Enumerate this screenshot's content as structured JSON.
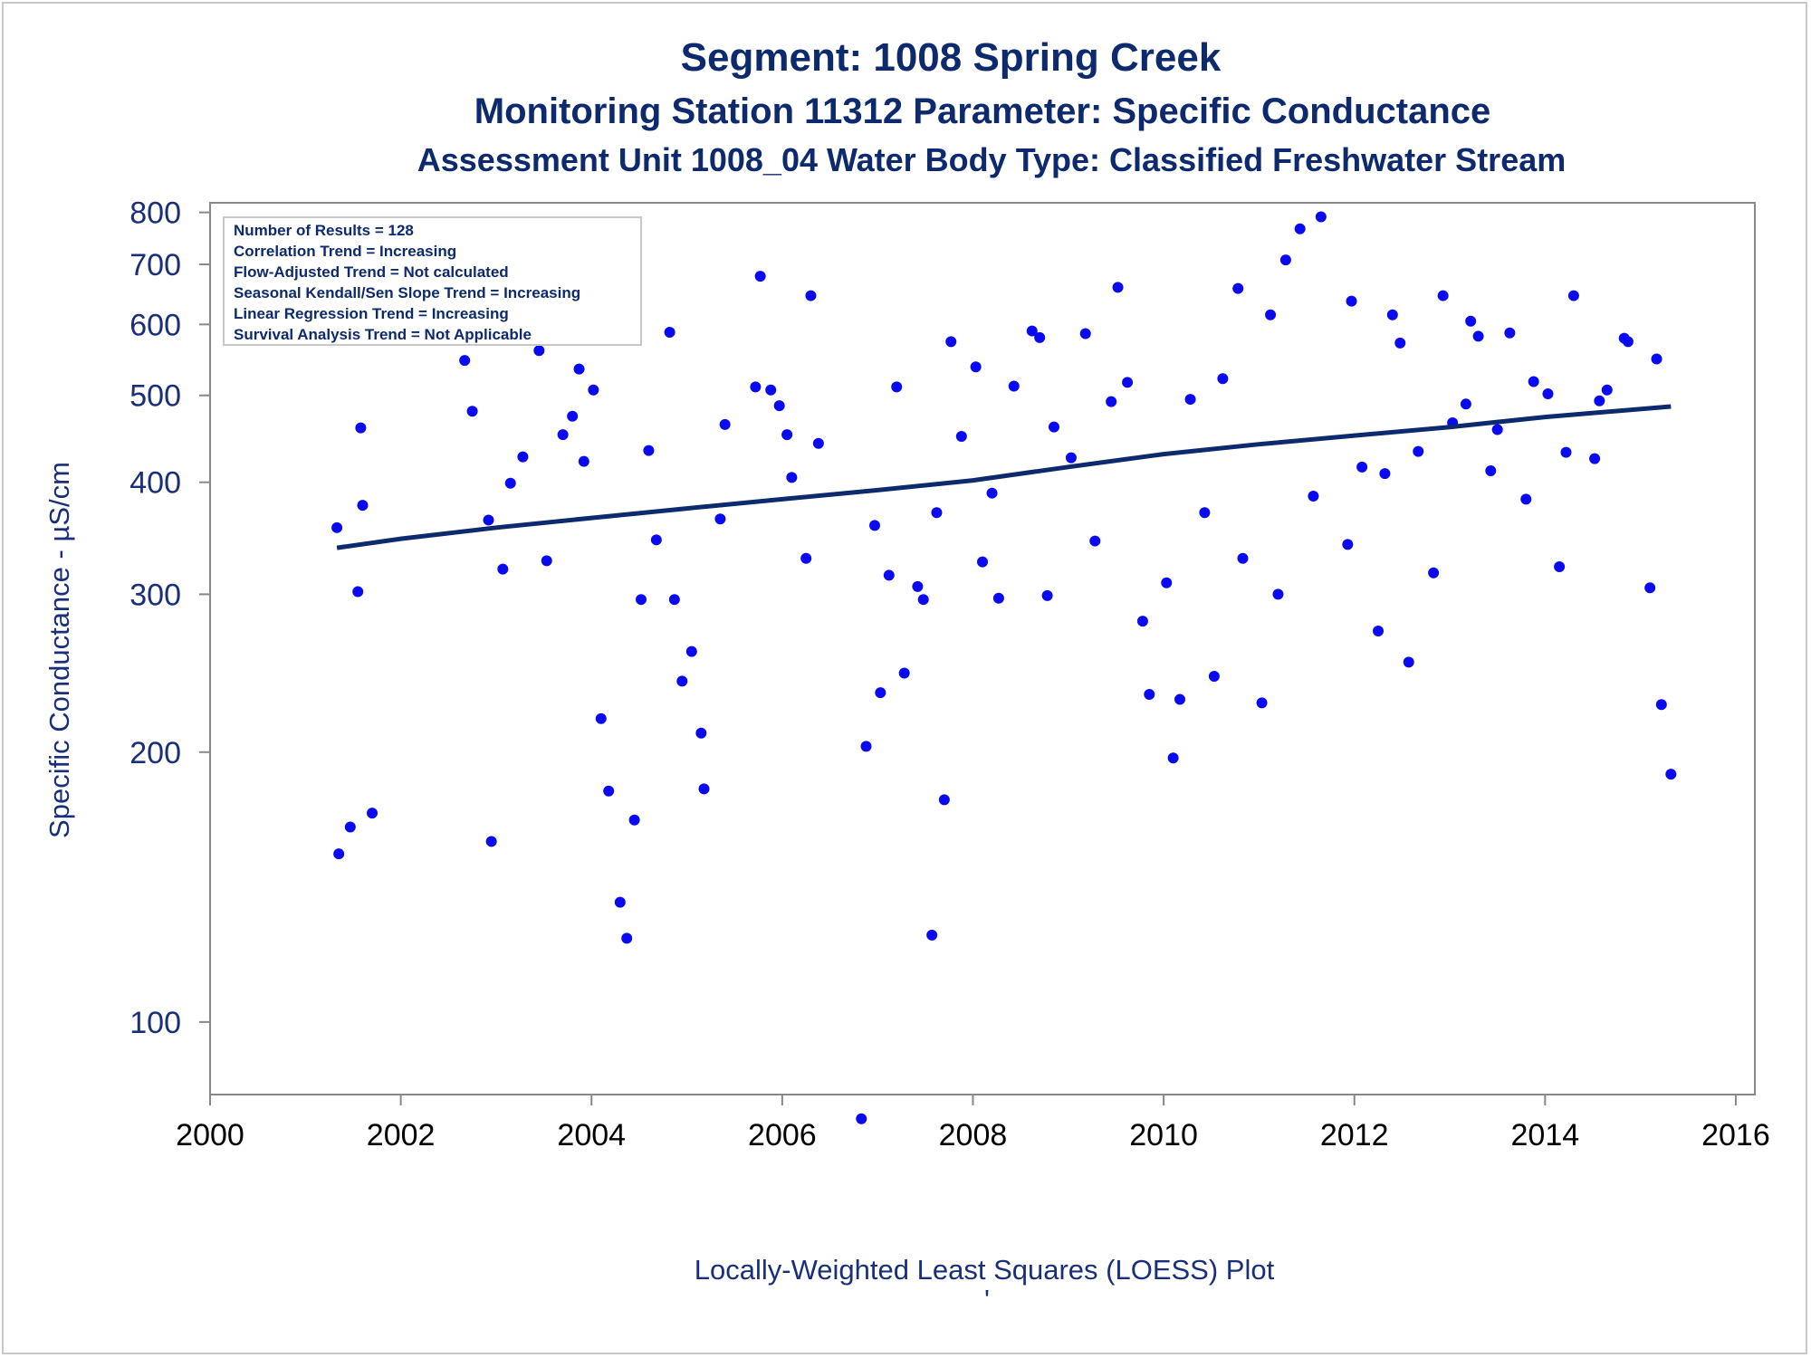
{
  "titles": {
    "line1": "Segment: 1008  Spring Creek",
    "line2": "Monitoring Station 11312 Parameter: Specific Conductance",
    "line3": "Assessment Unit 1008_04   Water Body Type: Classified Freshwater Stream"
  },
  "stats_box": {
    "lines": [
      "Number of Results = 128",
      "Correlation Trend = Increasing",
      "Flow-Adjusted Trend = Not calculated",
      "Seasonal Kendall/Sen Slope Trend = Increasing",
      "Linear Regression Trend = Increasing",
      "Survival Analysis Trend = Not Applicable"
    ]
  },
  "footnote": {
    "text": "Locally-Weighted Least Squares (LOESS) Plot",
    "mark": "'"
  },
  "colors": {
    "points": "#0a0af0",
    "trend_line": "#0d2a6e",
    "axis": "#888888",
    "title": "#0d2a6e"
  },
  "chart_data": {
    "type": "scatter",
    "ylabel": "Specific Conductance -  µS/cm",
    "xlabel": "",
    "y_scale": "log",
    "xlim": [
      2000,
      2016.2
    ],
    "ylim": [
      83,
      820
    ],
    "x_ticks": [
      2000,
      2002,
      2004,
      2006,
      2008,
      2010,
      2012,
      2014,
      2016
    ],
    "y_ticks": [
      100,
      200,
      300,
      400,
      500,
      600,
      700,
      800
    ],
    "grid": false,
    "legend": "top-left inset text box",
    "series": [
      {
        "type": "scatter",
        "points": [
          [
            2001.33,
            356
          ],
          [
            2001.35,
            154
          ],
          [
            2001.47,
            165
          ],
          [
            2001.55,
            302
          ],
          [
            2001.58,
            460
          ],
          [
            2001.6,
            377
          ],
          [
            2001.7,
            171
          ],
          [
            2002.67,
            547
          ],
          [
            2002.75,
            480
          ],
          [
            2002.92,
            363
          ],
          [
            2002.95,
            159
          ],
          [
            2003.07,
            320
          ],
          [
            2003.15,
            399
          ],
          [
            2003.28,
            427
          ],
          [
            2003.4,
            585
          ],
          [
            2003.45,
            561
          ],
          [
            2003.53,
            327
          ],
          [
            2003.62,
            671
          ],
          [
            2003.7,
            452
          ],
          [
            2003.8,
            474
          ],
          [
            2003.87,
            535
          ],
          [
            2003.92,
            422
          ],
          [
            2004.02,
            507
          ],
          [
            2004.1,
            218
          ],
          [
            2004.18,
            181
          ],
          [
            2004.3,
            136
          ],
          [
            2004.37,
            124
          ],
          [
            2004.45,
            168
          ],
          [
            2004.52,
            296
          ],
          [
            2004.6,
            434
          ],
          [
            2004.68,
            345
          ],
          [
            2004.82,
            588
          ],
          [
            2004.87,
            296
          ],
          [
            2004.95,
            240
          ],
          [
            2005.05,
            259
          ],
          [
            2005.15,
            210
          ],
          [
            2005.18,
            182
          ],
          [
            2005.35,
            364
          ],
          [
            2005.4,
            464
          ],
          [
            2005.72,
            511
          ],
          [
            2005.77,
            679
          ],
          [
            2005.88,
            507
          ],
          [
            2005.97,
            487
          ],
          [
            2006.05,
            452
          ],
          [
            2006.1,
            405
          ],
          [
            2006.25,
            329
          ],
          [
            2006.3,
            646
          ],
          [
            2006.38,
            442
          ],
          [
            2006.83,
            78
          ],
          [
            2006.88,
            203
          ],
          [
            2006.97,
            358
          ],
          [
            2007.03,
            233
          ],
          [
            2007.12,
            315
          ],
          [
            2007.2,
            511
          ],
          [
            2007.28,
            245
          ],
          [
            2007.42,
            306
          ],
          [
            2007.48,
            296
          ],
          [
            2007.57,
            125
          ],
          [
            2007.62,
            370
          ],
          [
            2007.7,
            177
          ],
          [
            2007.77,
            574
          ],
          [
            2007.88,
            450
          ],
          [
            2008.03,
            538
          ],
          [
            2008.1,
            326
          ],
          [
            2008.2,
            389
          ],
          [
            2008.27,
            297
          ],
          [
            2008.43,
            512
          ],
          [
            2008.62,
            590
          ],
          [
            2008.7,
            580
          ],
          [
            2008.78,
            299
          ],
          [
            2008.85,
            461
          ],
          [
            2009.03,
            426
          ],
          [
            2009.18,
            586
          ],
          [
            2009.28,
            344
          ],
          [
            2009.45,
            492
          ],
          [
            2009.52,
            660
          ],
          [
            2009.62,
            517
          ],
          [
            2009.78,
            280
          ],
          [
            2009.85,
            232
          ],
          [
            2010.03,
            309
          ],
          [
            2010.1,
            197
          ],
          [
            2010.17,
            229
          ],
          [
            2010.28,
            495
          ],
          [
            2010.43,
            370
          ],
          [
            2010.53,
            243
          ],
          [
            2010.62,
            522
          ],
          [
            2010.78,
            658
          ],
          [
            2010.83,
            329
          ],
          [
            2011.03,
            227
          ],
          [
            2011.12,
            615
          ],
          [
            2011.2,
            300
          ],
          [
            2011.28,
            708
          ],
          [
            2011.43,
            767
          ],
          [
            2011.57,
            386
          ],
          [
            2011.65,
            791
          ],
          [
            2011.93,
            341
          ],
          [
            2011.97,
            637
          ],
          [
            2012.08,
            416
          ],
          [
            2012.25,
            273
          ],
          [
            2012.32,
            409
          ],
          [
            2012.4,
            615
          ],
          [
            2012.48,
            572
          ],
          [
            2012.57,
            252
          ],
          [
            2012.67,
            433
          ],
          [
            2012.83,
            317
          ],
          [
            2012.93,
            646
          ],
          [
            2013.03,
            466
          ],
          [
            2013.17,
            489
          ],
          [
            2013.22,
            605
          ],
          [
            2013.3,
            582
          ],
          [
            2013.43,
            412
          ],
          [
            2013.5,
            458
          ],
          [
            2013.63,
            587
          ],
          [
            2013.8,
            383
          ],
          [
            2013.88,
            518
          ],
          [
            2014.03,
            502
          ],
          [
            2014.15,
            322
          ],
          [
            2014.22,
            432
          ],
          [
            2014.3,
            646
          ],
          [
            2014.52,
            425
          ],
          [
            2014.57,
            493
          ],
          [
            2014.65,
            507
          ],
          [
            2014.83,
            579
          ],
          [
            2014.87,
            574
          ],
          [
            2015.1,
            305
          ],
          [
            2015.17,
            549
          ],
          [
            2015.22,
            226
          ],
          [
            2015.32,
            189
          ]
        ]
      },
      {
        "type": "line",
        "points": [
          [
            2001.33,
            338
          ],
          [
            2002.0,
            346
          ],
          [
            2003.0,
            356
          ],
          [
            2004.0,
            365
          ],
          [
            2005.0,
            374
          ],
          [
            2006.0,
            383
          ],
          [
            2007.0,
            392
          ],
          [
            2008.0,
            402
          ],
          [
            2009.0,
            416
          ],
          [
            2010.0,
            430
          ],
          [
            2011.0,
            441
          ],
          [
            2012.0,
            451
          ],
          [
            2013.0,
            461
          ],
          [
            2014.0,
            473
          ],
          [
            2015.32,
            486
          ]
        ]
      }
    ]
  }
}
